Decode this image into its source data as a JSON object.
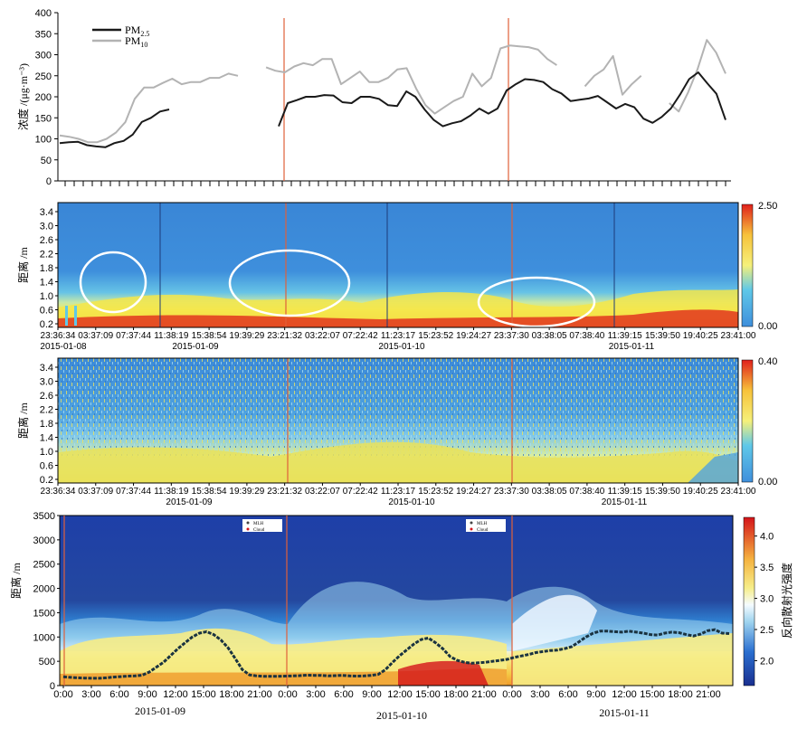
{
  "chart_data": [
    {
      "type": "line",
      "ylabel": "浓度 /(μg·m⁻³)",
      "ylim": [
        0,
        400
      ],
      "y_ticks": [
        0,
        50,
        100,
        150,
        200,
        250,
        300,
        350,
        400
      ],
      "legend": {
        "placement": "top-left"
      },
      "series": [
        {
          "name": "PM2.5",
          "legend_main": "PM",
          "legend_sub": "2.5",
          "color": "#1a1a1a",
          "values": [
            90,
            92,
            93,
            85,
            82,
            80,
            90,
            95,
            110,
            140,
            150,
            165,
            170,
            null,
            null,
            null,
            null,
            null,
            null,
            null,
            null,
            null,
            null,
            null,
            130,
            185,
            192,
            200,
            200,
            204,
            203,
            187,
            185,
            200,
            200,
            195,
            180,
            178,
            213,
            200,
            170,
            145,
            130,
            137,
            142,
            155,
            172,
            160,
            172,
            215,
            230,
            242,
            240,
            235,
            218,
            208,
            190,
            193,
            196,
            202,
            187,
            172,
            183,
            175,
            148,
            138,
            152,
            172,
            205,
            242,
            258,
            232,
            207,
            145
          ]
        },
        {
          "name": "PM10",
          "legend_main": "PM",
          "legend_sub": "10",
          "color": "#b3b3b3",
          "values": [
            108,
            105,
            100,
            92,
            92,
            100,
            115,
            140,
            195,
            222,
            222,
            233,
            243,
            230,
            235,
            235,
            245,
            245,
            255,
            250,
            null,
            null,
            270,
            262,
            258,
            272,
            280,
            275,
            290,
            290,
            230,
            245,
            260,
            235,
            235,
            245,
            265,
            268,
            220,
            180,
            160,
            175,
            190,
            200,
            255,
            225,
            245,
            315,
            322,
            320,
            318,
            312,
            290,
            275,
            null,
            null,
            225,
            250,
            265,
            297,
            205,
            230,
            250,
            null,
            null,
            185,
            165,
            210,
            265,
            335,
            305,
            255
          ]
        }
      ],
      "markers": [
        "vertical red line at 2015-01-09 24:00",
        "vertical red line at 2015-01-10 24:00"
      ]
    },
    {
      "type": "heatmap",
      "ylabel": "距离 /m",
      "y_ticks": [
        "0.2",
        "0.6",
        "1.0",
        "1.4",
        "1.8",
        "2.2",
        "2.6",
        "3.0",
        "3.4"
      ],
      "x_ticks": [
        "23:36:34",
        "03:37:09",
        "07:37:44",
        "11:38:19",
        "15:38:54",
        "19:39:29",
        "23:21:32",
        "03:22:07",
        "07:22:42",
        "11:23:17",
        "15:23:52",
        "19:24:27",
        "23:37:30",
        "03:38:05",
        "07:38:40",
        "11:39:15",
        "15:39:50",
        "19:40:25",
        "23:41:00"
      ],
      "date_labels": [
        "2015-01-08",
        "2015-01-09",
        "2015-01-10",
        "2015-01-11"
      ],
      "colorbar": {
        "min": "0.00",
        "max": "2.50"
      },
      "annotations": [
        "white ellipse 2015-01-08 night",
        "white ellipse 2015-01-09 evening",
        "white ellipse 2015-01-11 early morning"
      ]
    },
    {
      "type": "heatmap",
      "ylabel": "距离 /m",
      "y_ticks": [
        "0.2",
        "0.6",
        "1.0",
        "1.4",
        "1.8",
        "2.2",
        "2.6",
        "3.0",
        "3.4"
      ],
      "x_ticks": [
        "23:36:34",
        "03:37:09",
        "07:37:44",
        "11:38:19",
        "15:38:54",
        "19:39:29",
        "23:21:32",
        "03:22:07",
        "07:22:42",
        "11:23:17",
        "15:23:52",
        "19:24:27",
        "23:37:30",
        "03:38:05",
        "07:38:40",
        "11:39:15",
        "15:39:50",
        "19:40:25",
        "23:41:00"
      ],
      "date_labels": [
        "2015-01-09",
        "2015-01-10",
        "2015-01-11"
      ],
      "colorbar": {
        "min": "0.00",
        "max": "0.40"
      }
    },
    {
      "type": "heatmap",
      "ylabel": "距离 /m",
      "y_ticks": [
        "0",
        "500",
        "1000",
        "1500",
        "2000",
        "2500",
        "3000",
        "3500"
      ],
      "ylim": [
        0,
        3500
      ],
      "x_ticks": [
        "0:00",
        "3:00",
        "6:00",
        "9:00",
        "12:00",
        "15:00",
        "18:00",
        "21:00",
        "0:00",
        "3:00",
        "6:00",
        "9:00",
        "12:00",
        "15:00",
        "18:00",
        "21:00",
        "0:00",
        "3:00",
        "6:00",
        "9:00",
        "12:00",
        "15:00",
        "18:00",
        "21:00"
      ],
      "date_labels": [
        "2015-01-09",
        "2015-01-10",
        "2015-01-11"
      ],
      "colorbar": {
        "label": "反向散射光强度",
        "ticks": [
          "2.0",
          "2.5",
          "3.0",
          "3.5",
          "4.0"
        ],
        "range": [
          1.6,
          4.3
        ]
      },
      "legend_items": [
        "MLH",
        "Cloud"
      ],
      "mlh_values": [
        180,
        170,
        160,
        155,
        150,
        150,
        160,
        175,
        185,
        195,
        200,
        215,
        280,
        380,
        480,
        620,
        760,
        880,
        1000,
        1080,
        1110,
        1050,
        940,
        780,
        560,
        330,
        220,
        200,
        190,
        190,
        190,
        195,
        200,
        205,
        215,
        210,
        210,
        200,
        205,
        210,
        200,
        195,
        200,
        210,
        230,
        330,
        480,
        620,
        740,
        860,
        950,
        980,
        880,
        760,
        600,
        520,
        480,
        460,
        470,
        480,
        500,
        520,
        540,
        580,
        610,
        640,
        680,
        700,
        720,
        730,
        760,
        800,
        900,
        1000,
        1080,
        1120,
        1120,
        1110,
        1100,
        1120,
        1100,
        1080,
        1050,
        1040,
        1080,
        1100,
        1090,
        1050,
        1020,
        1060,
        1130,
        1150,
        1080,
        1070
      ]
    }
  ]
}
